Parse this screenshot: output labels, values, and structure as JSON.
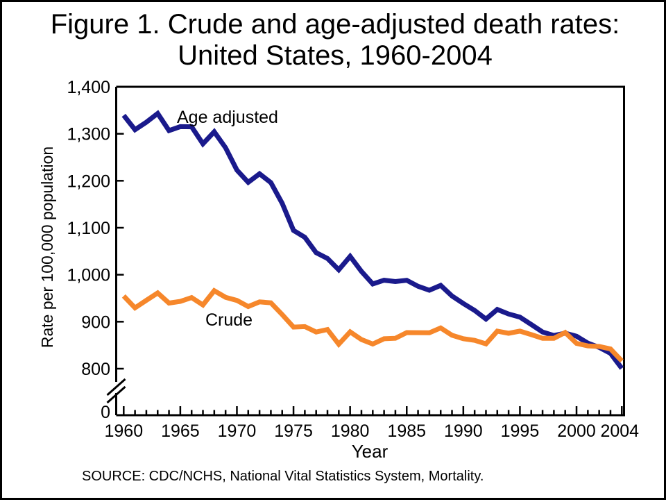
{
  "figure": {
    "title_line1": "Figure 1. Crude and age-adjusted death rates:",
    "title_line2": "United States, 1960-2004",
    "source": "SOURCE: CDC/NCHS, National Vital Statistics System, Mortality."
  },
  "chart_data": {
    "type": "line",
    "title": "Figure 1. Crude and age-adjusted death rates: United States, 1960-2004",
    "xlabel": "Year",
    "ylabel": "Rate per 100,000 population",
    "x": [
      1960,
      1961,
      1962,
      1963,
      1964,
      1965,
      1966,
      1967,
      1968,
      1969,
      1970,
      1971,
      1972,
      1973,
      1974,
      1975,
      1976,
      1977,
      1978,
      1979,
      1980,
      1981,
      1982,
      1983,
      1984,
      1985,
      1986,
      1987,
      1988,
      1989,
      1990,
      1991,
      1992,
      1993,
      1994,
      1995,
      1996,
      1997,
      1998,
      1999,
      2000,
      2001,
      2002,
      2003,
      2004
    ],
    "series": [
      {
        "name": "Age adjusted",
        "color": "#1A1A8C",
        "values": [
          1339.2,
          1308.7,
          1324.6,
          1343.3,
          1306.8,
          1315.1,
          1314.9,
          1278.6,
          1304.3,
          1270.1,
          1222.6,
          1196.6,
          1214.8,
          1196.1,
          1151.8,
          1094.4,
          1079.6,
          1046.9,
          1034.7,
          1010.5,
          1039.1,
          1007.1,
          980.3,
          988.3,
          985.5,
          988.1,
          975.4,
          967.0,
          977.3,
          954.8,
          938.7,
          924.0,
          905.6,
          926.1,
          916.5,
          909.8,
          894.1,
          878.1,
          870.6,
          875.6,
          869.0,
          854.5,
          845.3,
          832.7,
          800.8
        ]
      },
      {
        "name": "Crude",
        "color": "#F6872B",
        "values": [
          954.7,
          929.4,
          945.4,
          961.3,
          939.6,
          943.2,
          951.3,
          935.7,
          965.9,
          951.9,
          945.3,
          932.2,
          942.2,
          940.2,
          915.1,
          888.5,
          889.5,
          878.1,
          883.4,
          852.2,
          878.3,
          862.0,
          852.4,
          863.7,
          864.8,
          876.9,
          876.7,
          876.4,
          886.7,
          871.3,
          863.8,
          860.3,
          852.9,
          880.0,
          875.4,
          880.0,
          872.5,
          864.7,
          864.7,
          877.0,
          854.0,
          848.5,
          847.3,
          841.9,
          816.5
        ]
      }
    ],
    "y_axis": {
      "tick_values": [
        1400,
        1300,
        1200,
        1100,
        1000,
        900,
        800
      ],
      "tick_labels": [
        "1,400",
        "1,300",
        "1,200",
        "1,100",
        "1,000",
        "900",
        "800"
      ],
      "zero_label": "0",
      "axis_break": true,
      "plot_range": [
        800,
        1400
      ],
      "grid": false
    },
    "x_axis": {
      "major_tick_years": [
        1960,
        1965,
        1970,
        1975,
        1980,
        1985,
        1990,
        1995,
        2000,
        2004
      ],
      "minor_ticks_every_year": true,
      "range": [
        1960,
        2004
      ]
    },
    "legend_position": "inline-labels"
  }
}
